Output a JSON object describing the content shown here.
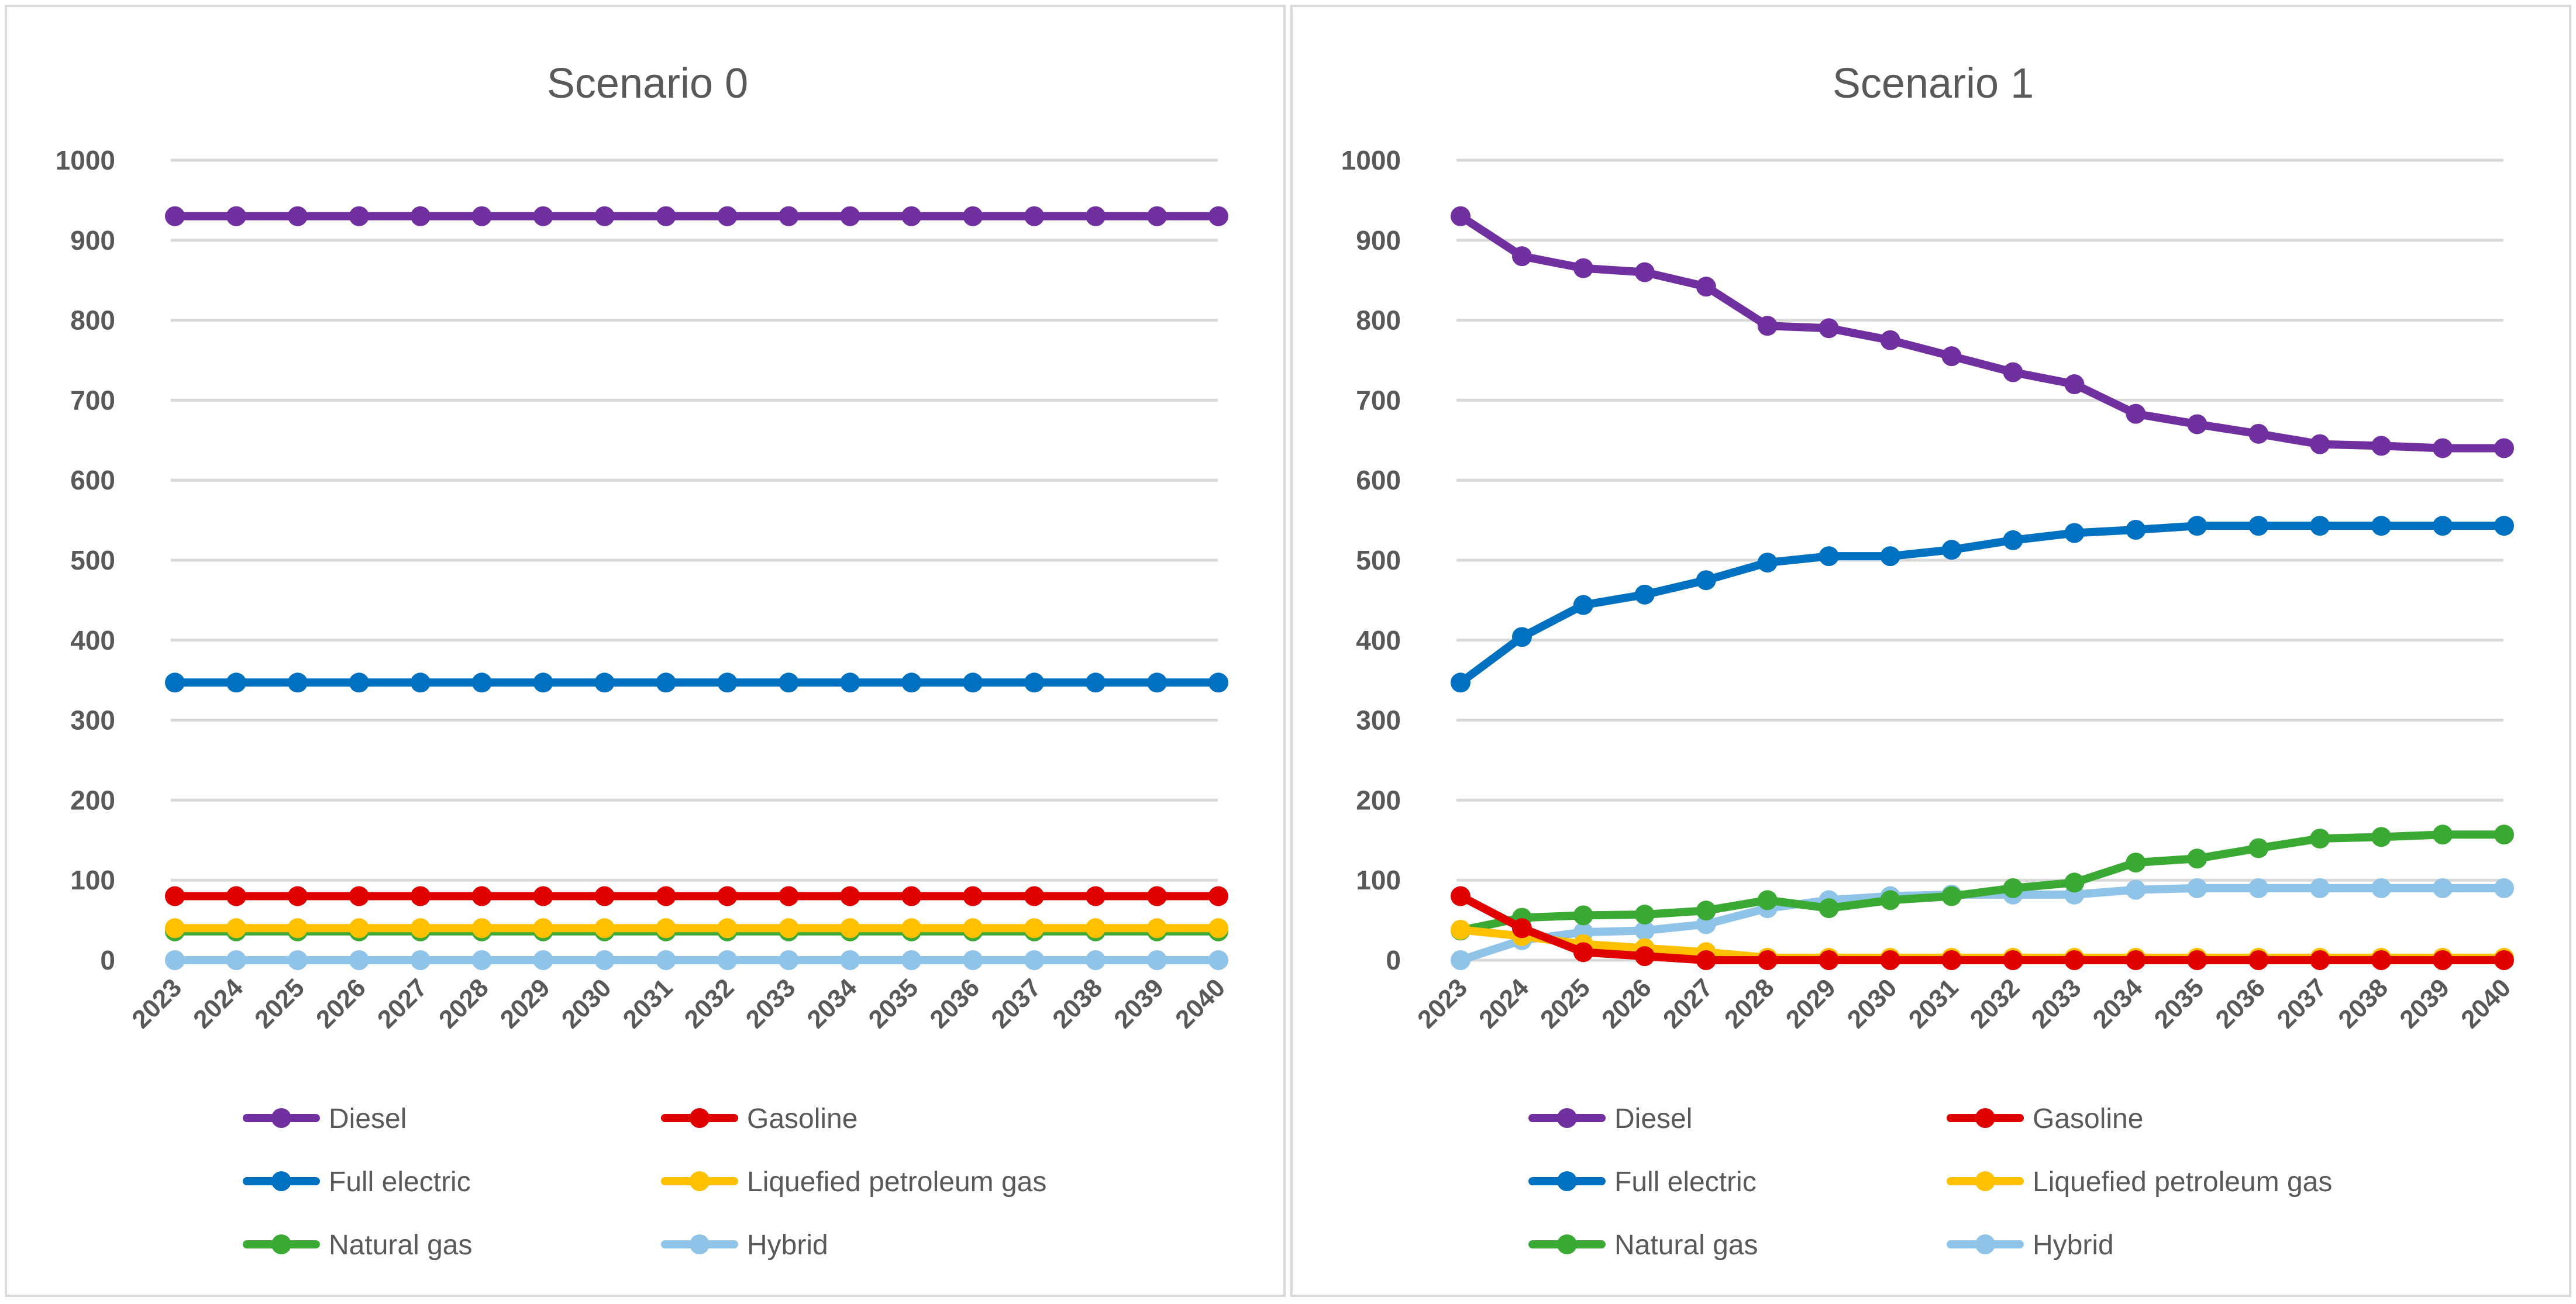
{
  "colors": {
    "Diesel": "#7030a0",
    "Gasoline": "#e00000",
    "Full electric": "#0070c0",
    "Liquefied petroleum gas": "#ffc000",
    "Natural gas": "#3aaa35",
    "Hybrid": "#8fc3e8",
    "grid": "#d9d9d9",
    "text": "#595959"
  },
  "chart_data": [
    {
      "type": "line",
      "title": "Scenario 0",
      "xlabel": "",
      "ylabel": "",
      "ylim": [
        0,
        1000
      ],
      "yticks": [
        "0",
        "100",
        "200",
        "300",
        "400",
        "500",
        "600",
        "700",
        "800",
        "900",
        "1000"
      ],
      "grid": true,
      "legend_placement": "bottom",
      "categories": [
        "2023",
        "2024",
        "2025",
        "2026",
        "2027",
        "2028",
        "2029",
        "2030",
        "2031",
        "2032",
        "2033",
        "2034",
        "2035",
        "2036",
        "2037",
        "2038",
        "2039",
        "2040"
      ],
      "series": [
        {
          "name": "Diesel",
          "values": [
            930,
            930,
            930,
            930,
            930,
            930,
            930,
            930,
            930,
            930,
            930,
            930,
            930,
            930,
            930,
            930,
            930,
            930
          ]
        },
        {
          "name": "Gasoline",
          "values": [
            80,
            80,
            80,
            80,
            80,
            80,
            80,
            80,
            80,
            80,
            80,
            80,
            80,
            80,
            80,
            80,
            80,
            80
          ]
        },
        {
          "name": "Full electric",
          "values": [
            347,
            347,
            347,
            347,
            347,
            347,
            347,
            347,
            347,
            347,
            347,
            347,
            347,
            347,
            347,
            347,
            347,
            347
          ]
        },
        {
          "name": "Liquefied petroleum gas",
          "values": [
            40,
            40,
            40,
            40,
            40,
            40,
            40,
            40,
            40,
            40,
            40,
            40,
            40,
            40,
            40,
            40,
            40,
            40
          ]
        },
        {
          "name": "Natural gas",
          "values": [
            36,
            36,
            36,
            36,
            36,
            36,
            36,
            36,
            36,
            36,
            36,
            36,
            36,
            36,
            36,
            36,
            36,
            36
          ]
        },
        {
          "name": "Hybrid",
          "values": [
            0,
            0,
            0,
            0,
            0,
            0,
            0,
            0,
            0,
            0,
            0,
            0,
            0,
            0,
            0,
            0,
            0,
            0
          ]
        }
      ]
    },
    {
      "type": "line",
      "title": "Scenario 1",
      "xlabel": "",
      "ylabel": "",
      "ylim": [
        0,
        1000
      ],
      "yticks": [
        "0",
        "100",
        "200",
        "300",
        "400",
        "500",
        "600",
        "700",
        "800",
        "900",
        "1000"
      ],
      "grid": true,
      "legend_placement": "bottom",
      "categories": [
        "2023",
        "2024",
        "2025",
        "2026",
        "2027",
        "2028",
        "2029",
        "2030",
        "2031",
        "2032",
        "2033",
        "2034",
        "2035",
        "2036",
        "2037",
        "2038",
        "2039",
        "2040"
      ],
      "series": [
        {
          "name": "Diesel",
          "values": [
            930,
            880,
            865,
            860,
            842,
            793,
            790,
            775,
            755,
            735,
            720,
            683,
            670,
            658,
            645,
            643,
            640,
            640
          ]
        },
        {
          "name": "Gasoline",
          "values": [
            80,
            40,
            10,
            5,
            0,
            0,
            0,
            0,
            0,
            0,
            0,
            0,
            0,
            0,
            0,
            0,
            0,
            0
          ]
        },
        {
          "name": "Full electric",
          "values": [
            347,
            404,
            444,
            457,
            475,
            497,
            505,
            505,
            513,
            525,
            534,
            538,
            543,
            543,
            543,
            543,
            543,
            543
          ]
        },
        {
          "name": "Liquefied petroleum gas",
          "values": [
            38,
            30,
            20,
            15,
            10,
            3,
            3,
            3,
            3,
            3,
            3,
            3,
            3,
            3,
            3,
            3,
            3,
            3
          ]
        },
        {
          "name": "Natural gas",
          "values": [
            37,
            53,
            56,
            57,
            62,
            75,
            65,
            75,
            80,
            90,
            97,
            122,
            127,
            140,
            152,
            154,
            157,
            157
          ]
        },
        {
          "name": "Hybrid",
          "values": [
            0,
            25,
            35,
            37,
            45,
            65,
            75,
            80,
            82,
            82,
            82,
            88,
            90,
            90,
            90,
            90,
            90,
            90
          ]
        }
      ]
    }
  ]
}
